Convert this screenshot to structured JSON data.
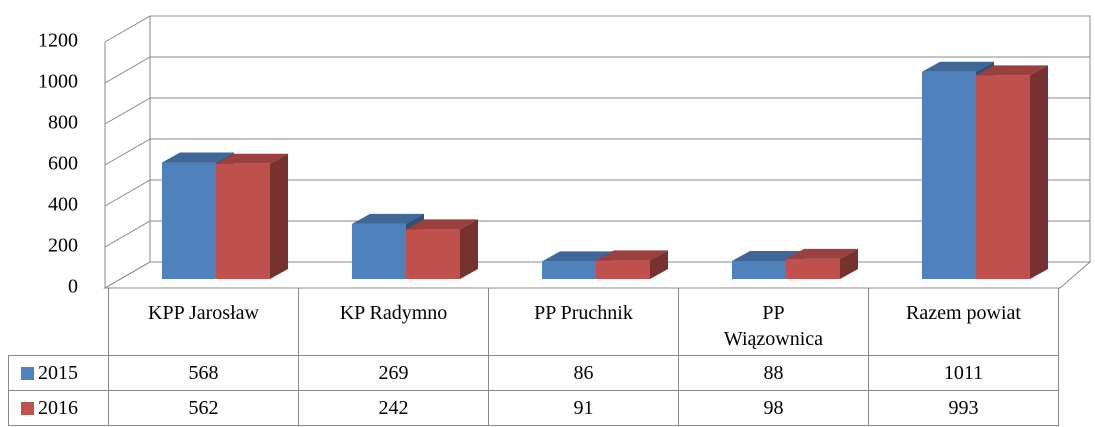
{
  "chart_data": {
    "type": "bar3d",
    "categories": [
      "KPP Jarosław",
      "KP Radymno",
      "PP Pruchnik",
      "PP Wiązownica",
      "Razem powiat"
    ],
    "series": [
      {
        "name": "2015",
        "color": "#4f81bd",
        "values": [
          568,
          269,
          86,
          88,
          1011
        ]
      },
      {
        "name": "2016",
        "color": "#c0504d",
        "values": [
          562,
          242,
          91,
          98,
          993
        ]
      }
    ],
    "ylim": [
      0,
      1200
    ],
    "yticks": [
      0,
      200,
      400,
      600,
      800,
      1000,
      1200
    ],
    "grid": true,
    "data_table": true
  }
}
